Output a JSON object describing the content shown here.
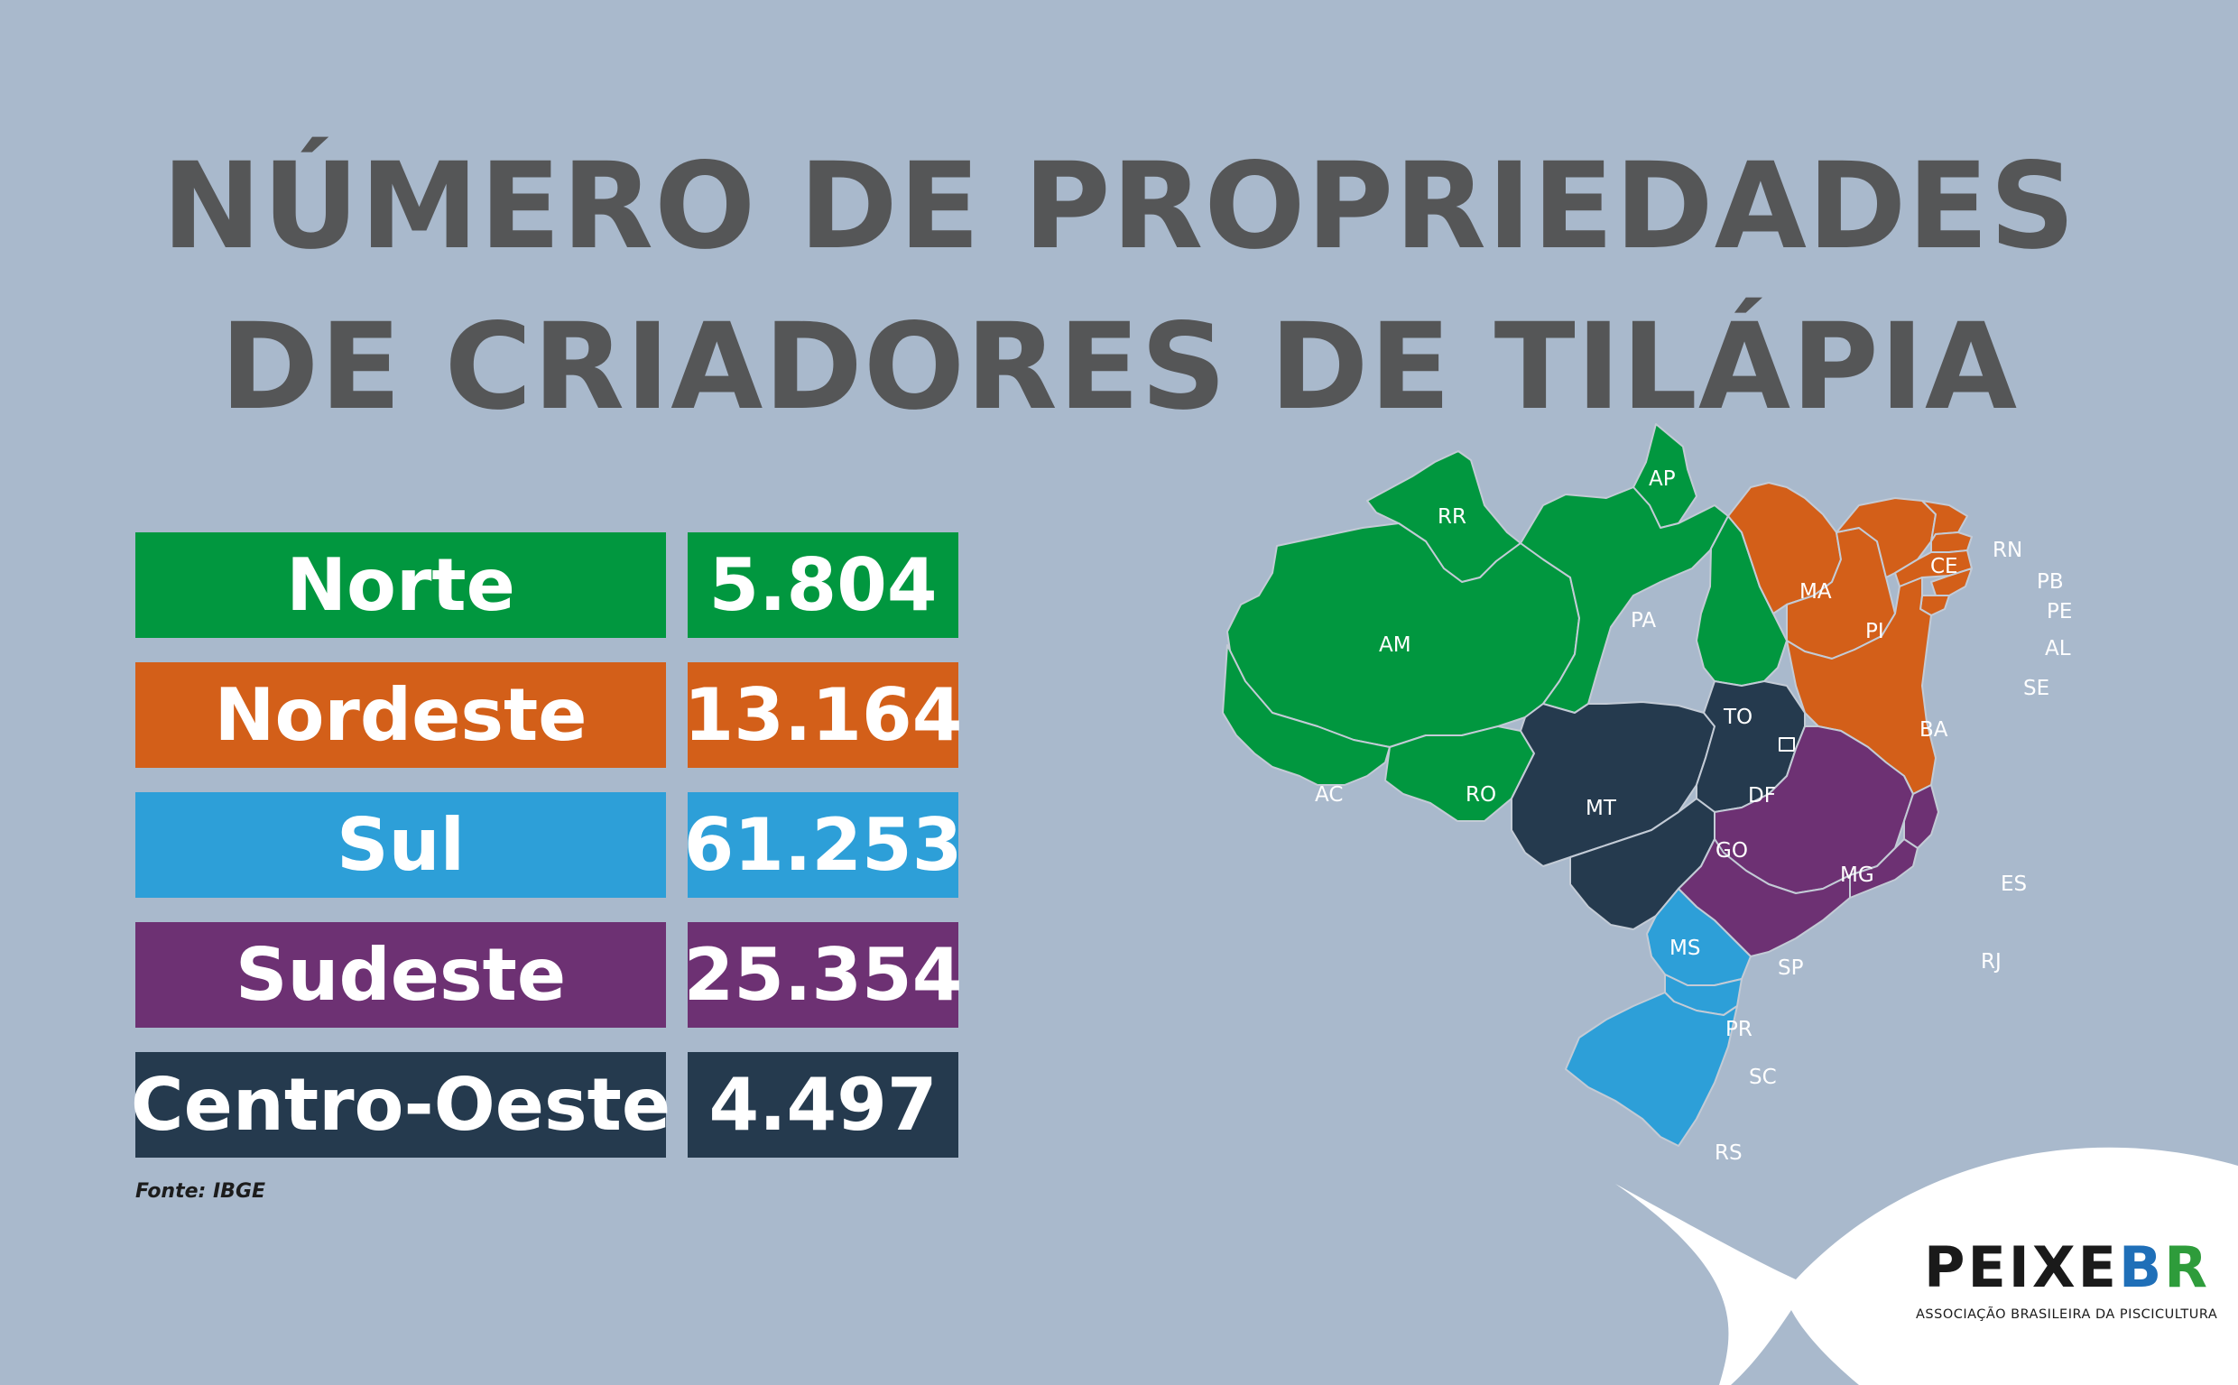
{
  "title": {
    "line1": "NÚMERO DE PROPRIEDADES",
    "line2": "DE CRIADORES DE TILÁPIA"
  },
  "regions": [
    {
      "name": "Norte",
      "value": "5.804",
      "color": "#01973f"
    },
    {
      "name": "Nordeste",
      "value": "13.164",
      "color": "#d35f19"
    },
    {
      "name": "Sul",
      "value": "61.253",
      "color": "#2d9fd8"
    },
    {
      "name": "Sudeste",
      "value": "25.354",
      "color": "#6d3173"
    },
    {
      "name": "Centro-Oeste",
      "value": "4.497",
      "color": "#253a4e"
    }
  ],
  "source": "Fonte: IBGE",
  "map": {
    "states": [
      {
        "abbr": "AP",
        "region": "Norte"
      },
      {
        "abbr": "RR",
        "region": "Norte"
      },
      {
        "abbr": "AM",
        "region": "Norte"
      },
      {
        "abbr": "PA",
        "region": "Norte"
      },
      {
        "abbr": "AC",
        "region": "Norte"
      },
      {
        "abbr": "RO",
        "region": "Norte"
      },
      {
        "abbr": "TO",
        "region": "Norte"
      },
      {
        "abbr": "MA",
        "region": "Nordeste"
      },
      {
        "abbr": "PI",
        "region": "Nordeste"
      },
      {
        "abbr": "CE",
        "region": "Nordeste"
      },
      {
        "abbr": "RN",
        "region": "Nordeste"
      },
      {
        "abbr": "PB",
        "region": "Nordeste"
      },
      {
        "abbr": "PE",
        "region": "Nordeste"
      },
      {
        "abbr": "AL",
        "region": "Nordeste"
      },
      {
        "abbr": "SE",
        "region": "Nordeste"
      },
      {
        "abbr": "BA",
        "region": "Nordeste"
      },
      {
        "abbr": "MT",
        "region": "Centro-Oeste"
      },
      {
        "abbr": "DF",
        "region": "Centro-Oeste"
      },
      {
        "abbr": "GO",
        "region": "Centro-Oeste"
      },
      {
        "abbr": "MS",
        "region": "Centro-Oeste"
      },
      {
        "abbr": "MG",
        "region": "Sudeste"
      },
      {
        "abbr": "ES",
        "region": "Sudeste"
      },
      {
        "abbr": "SP",
        "region": "Sudeste"
      },
      {
        "abbr": "RJ",
        "region": "Sudeste"
      },
      {
        "abbr": "PR",
        "region": "Sul"
      },
      {
        "abbr": "SC",
        "region": "Sul"
      },
      {
        "abbr": "RS",
        "region": "Sul"
      }
    ]
  },
  "logo": {
    "word_main": "PEIXE",
    "word_b": "B",
    "word_r": "R",
    "subtitle": "ASSOCIAÇÃO BRASILEIRA DA PISCICULTURA"
  }
}
